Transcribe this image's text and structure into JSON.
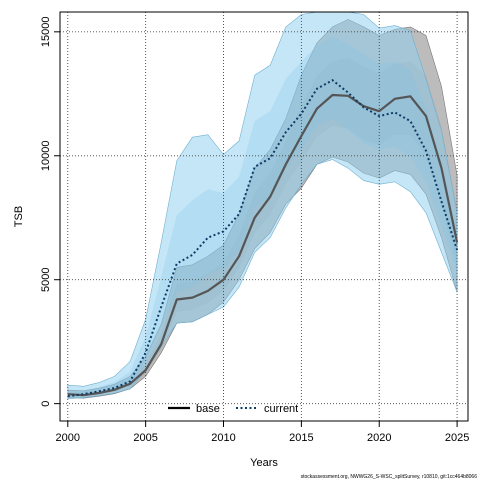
{
  "chart_data": {
    "type": "area",
    "xlabel": "Years",
    "ylabel": "TSB",
    "xlim": [
      1999.5,
      2025.7
    ],
    "ylim": [
      -700,
      15800
    ],
    "xticks": [
      2000,
      2005,
      2010,
      2015,
      2020,
      2025
    ],
    "yticks": [
      0,
      5000,
      10000,
      15000
    ],
    "grid": true,
    "legend_position": "bottom-center",
    "x": [
      2000,
      2001,
      2002,
      2003,
      2004,
      2005,
      2006,
      2007,
      2008,
      2009,
      2010,
      2011,
      2012,
      2013,
      2014,
      2015,
      2016,
      2017,
      2018,
      2019,
      2020,
      2021,
      2022,
      2023,
      2024,
      2025
    ],
    "series": [
      {
        "name": "base",
        "color": "#555555",
        "line_style": "solid",
        "values": [
          380,
          340,
          430,
          560,
          800,
          1350,
          2400,
          4200,
          4280,
          4550,
          5000,
          5950,
          7500,
          8350,
          9650,
          10800,
          11900,
          12450,
          12420,
          12000,
          11800,
          12300,
          12400,
          11600,
          9500,
          6500
        ],
        "band_outer": {
          "lower": [
            250,
            220,
            300,
            400,
            600,
            1100,
            2050,
            3250,
            3300,
            3600,
            4100,
            5000,
            6250,
            6900,
            8050,
            8700,
            9650,
            9950,
            9750,
            9300,
            9100,
            9400,
            9250,
            8450,
            6700,
            4500
          ],
          "upper": [
            550,
            520,
            620,
            780,
            1100,
            1900,
            3200,
            5500,
            5600,
            5950,
            6400,
            7650,
            9500,
            10250,
            11500,
            13250,
            14550,
            15200,
            15500,
            15200,
            14850,
            15100,
            15200,
            14850,
            12800,
            9200
          ]
        },
        "band_inner": {
          "lower": [
            320,
            290,
            370,
            490,
            700,
            1230,
            2220,
            3700,
            3780,
            4070,
            4560,
            5480,
            6880,
            7630,
            8850,
            9750,
            10770,
            11200,
            11090,
            10650,
            10450,
            10850,
            10830,
            10030,
            8100,
            5500
          ],
          "upper": [
            460,
            430,
            520,
            670,
            950,
            1620,
            2800,
            4850,
            4940,
            5250,
            5700,
            6800,
            8500,
            9300,
            10580,
            12020,
            13220,
            13820,
            13960,
            13600,
            13330,
            13700,
            13800,
            13220,
            11150,
            7850
          ]
        }
      },
      {
        "name": "current",
        "color": "#0d3b66",
        "line_style": "dotted",
        "values": [
          300,
          380,
          500,
          630,
          900,
          2050,
          3900,
          5650,
          6000,
          6700,
          6950,
          7650,
          9550,
          9900,
          10950,
          11700,
          12700,
          13050,
          12550,
          11950,
          11600,
          11750,
          11400,
          10200,
          8150,
          6200
        ],
        "band_outer": {
          "lower": [
            200,
            240,
            320,
            420,
            600,
            1350,
            2300,
            3250,
            3300,
            3600,
            3900,
            4700,
            6100,
            6700,
            7900,
            8850,
            9650,
            9850,
            9500,
            9000,
            8850,
            8950,
            8550,
            7700,
            6100,
            4500
          ],
          "upper": [
            750,
            700,
            850,
            1100,
            1700,
            3400,
            6500,
            9800,
            10750,
            10850,
            10050,
            10600,
            13250,
            13650,
            15200,
            15700,
            15800,
            15800,
            15800,
            15700,
            15150,
            15250,
            15050,
            13100,
            11000,
            7700
          ]
        },
        "band_inner": {
          "lower": [
            260,
            300,
            410,
            520,
            750,
            1700,
            3120,
            4500,
            4700,
            5200,
            5450,
            6200,
            7900,
            8350,
            9450,
            10300,
            11200,
            11500,
            11050,
            10500,
            10250,
            10350,
            10000,
            8950,
            7150,
            5350
          ],
          "upper": [
            520,
            530,
            670,
            860,
            1300,
            2700,
            5100,
            7600,
            8200,
            8650,
            8500,
            9150,
            11400,
            11800,
            13100,
            13800,
            14450,
            14800,
            14500,
            14100,
            13700,
            13800,
            13450,
            11900,
            9750,
            6950
          ]
        }
      }
    ]
  },
  "footer": {
    "credit": "stockassessment.org, NWWG26_S-WSC_splitSurvey, r10810, git:1cc464b8066"
  }
}
